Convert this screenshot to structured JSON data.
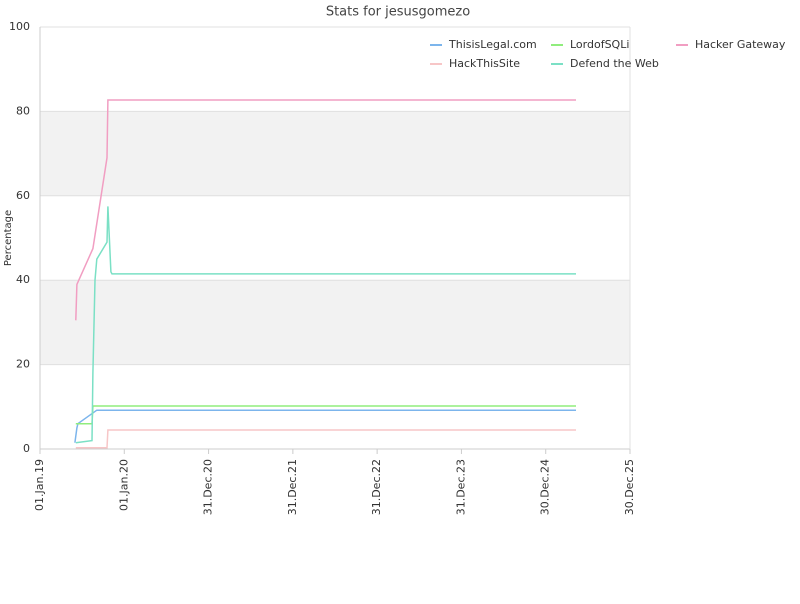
{
  "chart_data": {
    "type": "line",
    "title": "Stats for jesusgomezo",
    "y_label": "Percentage",
    "xlim": [
      "2019-01-01",
      "2025-12-30"
    ],
    "xticks": [
      {
        "value": "2019-01-01",
        "label": "01.Jan.19"
      },
      {
        "value": "2020-01-01",
        "label": "01.Jan.20"
      },
      {
        "value": "2020-12-31",
        "label": "31.Dec.20"
      },
      {
        "value": "2021-12-31",
        "label": "31.Dec.21"
      },
      {
        "value": "2022-12-31",
        "label": "31.Dec.22"
      },
      {
        "value": "2023-12-31",
        "label": "31.Dec.23"
      },
      {
        "value": "2024-12-30",
        "label": "30.Dec.24"
      },
      {
        "value": "2025-12-30",
        "label": "30.Dec.25"
      }
    ],
    "ylim": [
      0,
      100
    ],
    "yticks": [
      0,
      20,
      40,
      60,
      80,
      100
    ],
    "grid": true,
    "bands": true,
    "legend": "top-right",
    "series": [
      {
        "name": "ThisisLegal.com",
        "color": "#7cb5ec",
        "x": [
          "2019-06-01",
          "2019-06-10",
          "2019-06-14",
          "2019-09-04",
          "2025-05-10"
        ],
        "values": [
          1.5,
          5,
          6,
          9.2,
          9.2
        ]
      },
      {
        "name": "LordofSQLi",
        "color": "#90ed7d",
        "x": [
          "2019-06-05",
          "2019-08-14",
          "2019-08-18",
          "2025-05-10"
        ],
        "values": [
          6,
          6,
          10.2,
          10.2
        ]
      },
      {
        "name": "Hacker Gateway",
        "color": "#f19ec2",
        "x": [
          "2019-06-05",
          "2019-06-10",
          "2019-08-18",
          "2019-10-18",
          "2019-10-22",
          "2025-05-10"
        ],
        "values": [
          30.5,
          39,
          47.5,
          69,
          82.7,
          82.7
        ]
      },
      {
        "name": "HackThisSite",
        "color": "#f7c6c7",
        "x": [
          "2019-06-05",
          "2019-10-18",
          "2019-10-22",
          "2025-05-10"
        ],
        "values": [
          0.3,
          0.3,
          4.5,
          4.5
        ]
      },
      {
        "name": "Defend the Web",
        "color": "#7be0c5",
        "x": [
          "2019-06-05",
          "2019-08-14",
          "2019-08-18",
          "2019-08-27",
          "2019-09-04",
          "2019-10-18",
          "2019-10-22",
          "2019-11-04",
          "2019-11-09",
          "2025-05-10"
        ],
        "values": [
          1.5,
          2,
          18,
          40,
          45,
          49,
          57.5,
          42,
          41.5,
          41.5
        ]
      }
    ]
  }
}
